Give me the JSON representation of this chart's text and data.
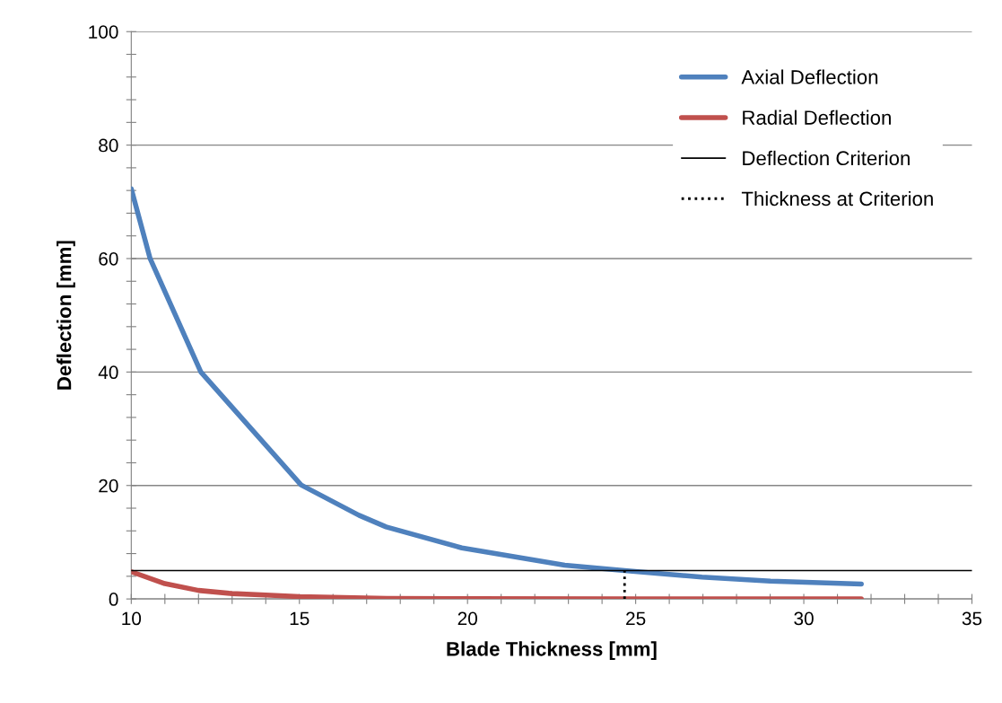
{
  "chart_data": {
    "type": "line",
    "xlabel": "Blade Thickness [mm]",
    "ylabel": "Deflection [mm]",
    "xlim": [
      10,
      35
    ],
    "ylim": [
      0,
      100
    ],
    "xticks": [
      10,
      {
        "value": 11,
        "label": null
      },
      {
        "value": 12,
        "label": null
      },
      {
        "value": 13,
        "label": null
      },
      {
        "value": 14,
        "label": null
      },
      15,
      {
        "value": 16,
        "label": null
      },
      {
        "value": 17,
        "label": null
      },
      {
        "value": 18,
        "label": null
      },
      {
        "value": 19,
        "label": null
      },
      20,
      {
        "value": 21,
        "label": null
      },
      {
        "value": 22,
        "label": null
      },
      {
        "value": 23,
        "label": null
      },
      {
        "value": 24,
        "label": null
      },
      25,
      {
        "value": 26,
        "label": null
      },
      {
        "value": 27,
        "label": null
      },
      {
        "value": 28,
        "label": null
      },
      {
        "value": 29,
        "label": null
      },
      30,
      {
        "value": 31,
        "label": null
      },
      {
        "value": 32,
        "label": null
      },
      {
        "value": 33,
        "label": null
      },
      {
        "value": 34,
        "label": null
      },
      35
    ],
    "yticks": [
      0,
      {
        "value": 4,
        "label": null
      },
      {
        "value": 8,
        "label": null
      },
      {
        "value": 12,
        "label": null
      },
      {
        "value": 16,
        "label": null
      },
      20,
      {
        "value": 24,
        "label": null
      },
      {
        "value": 28,
        "label": null
      },
      {
        "value": 32,
        "label": null
      },
      {
        "value": 36,
        "label": null
      },
      40,
      {
        "value": 44,
        "label": null
      },
      {
        "value": 48,
        "label": null
      },
      {
        "value": 52,
        "label": null
      },
      {
        "value": 56,
        "label": null
      },
      60,
      {
        "value": 64,
        "label": null
      },
      {
        "value": 68,
        "label": null
      },
      {
        "value": 72,
        "label": null
      },
      {
        "value": 76,
        "label": null
      },
      80,
      {
        "value": 84,
        "label": null
      },
      {
        "value": 88,
        "label": null
      },
      {
        "value": 92,
        "label": null
      },
      {
        "value": 96,
        "label": null
      },
      100
    ],
    "grid": "y",
    "legend": "top right",
    "marker": "none",
    "series": [
      {
        "name": "Axial Deflection",
        "color": "#4f81bd",
        "line_style": "solid",
        "x": [
          10,
          10.56,
          12.07,
          15.05,
          16.77,
          17.58,
          19.83,
          22.89,
          24.67,
          26.97,
          29.01,
          31.71
        ],
        "values": [
          72.3,
          60,
          40,
          20.1,
          14.75,
          12.7,
          9.0,
          5.97,
          5.0,
          3.86,
          3.13,
          2.64
        ]
      },
      {
        "name": "Radial Deflection",
        "color": "#c0504d",
        "line_style": "solid",
        "x": [
          10,
          11,
          12,
          13,
          14,
          15,
          17.6,
          20,
          25,
          31.71
        ],
        "values": [
          4.8,
          2.7,
          1.5,
          0.95,
          0.7,
          0.4,
          0.1,
          0.05,
          0.02,
          0.01
        ]
      },
      {
        "name": "Deflection Criterion",
        "color": "#000000",
        "line_style": "solid",
        "x": [
          10,
          35
        ],
        "values": [
          5,
          5
        ]
      },
      {
        "name": "Thickness at Criterion",
        "color": "#000000",
        "line_style": "dotted",
        "x": [
          24.67,
          24.67
        ],
        "values": [
          0,
          5
        ]
      }
    ]
  }
}
